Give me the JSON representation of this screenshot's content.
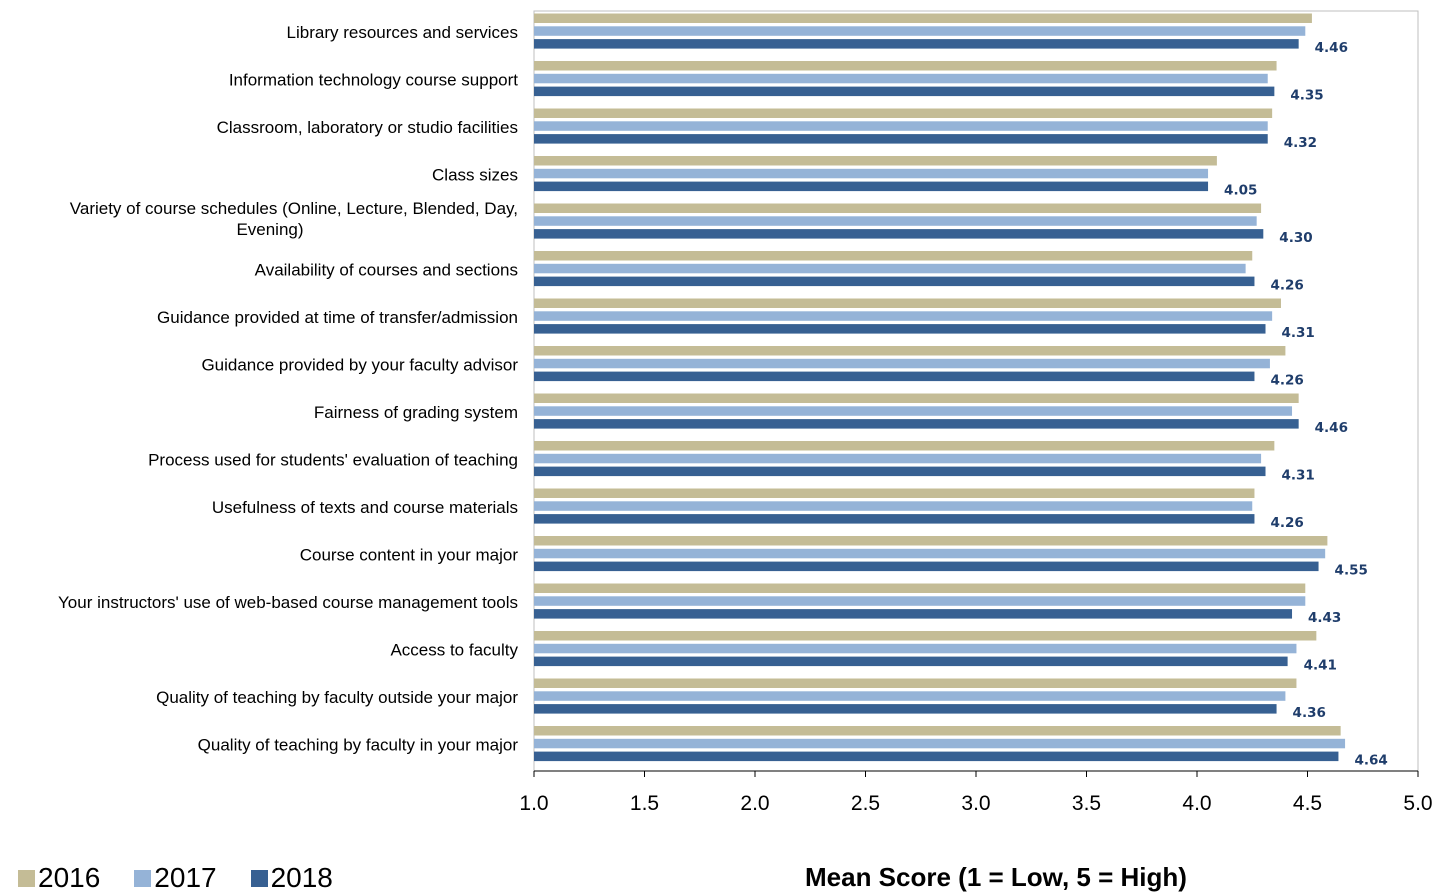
{
  "chart_data": {
    "type": "bar",
    "orientation": "horizontal",
    "categories": [
      "Library resources and services",
      "Information technology course support",
      "Classroom, laboratory or studio facilities",
      "Class sizes",
      [
        "Variety of course schedules (Online, Lecture, Blended, Day,",
        "Evening)"
      ],
      "Availability of courses and sections",
      "Guidance provided at time of transfer/admission",
      "Guidance provided by your faculty advisor",
      "Fairness of grading system",
      "Process used for students' evaluation of teaching",
      "Usefulness of texts and course materials",
      "Course content in your major",
      "Your instructors' use of web-based course management tools",
      "Access to faculty",
      "Quality of teaching by faculty outside your major",
      "Quality of teaching by faculty in your major"
    ],
    "series": [
      {
        "name": "2016",
        "color": "#c4bc96",
        "values": [
          4.52,
          4.36,
          4.34,
          4.09,
          4.29,
          4.25,
          4.38,
          4.4,
          4.46,
          4.35,
          4.26,
          4.59,
          4.49,
          4.54,
          4.45,
          4.65
        ]
      },
      {
        "name": "2017",
        "color": "#95b3d7",
        "values": [
          4.49,
          4.32,
          4.32,
          4.05,
          4.27,
          4.22,
          4.34,
          4.33,
          4.43,
          4.29,
          4.25,
          4.58,
          4.49,
          4.45,
          4.4,
          4.67
        ]
      },
      {
        "name": "2018",
        "color": "#376092",
        "values": [
          4.46,
          4.35,
          4.32,
          4.05,
          4.3,
          4.26,
          4.31,
          4.26,
          4.46,
          4.31,
          4.26,
          4.55,
          4.43,
          4.41,
          4.36,
          4.64
        ]
      }
    ],
    "data_labels": [
      "4.46",
      "4.35",
      "4.32",
      "4.05",
      "4.30",
      "4.26",
      "4.31",
      "4.26",
      "4.46",
      "4.31",
      "4.26",
      "4.55",
      "4.43",
      "4.41",
      "4.36",
      "4.64"
    ],
    "xlim": [
      1.0,
      5.0
    ],
    "xticks": [
      "1.0",
      "1.5",
      "2.0",
      "2.5",
      "3.0",
      "3.5",
      "4.0",
      "4.5",
      "5.0"
    ],
    "xlabel": "Mean Score (1 = Low, 5 = High)",
    "legend_position": "bottom-left",
    "grid": false
  }
}
